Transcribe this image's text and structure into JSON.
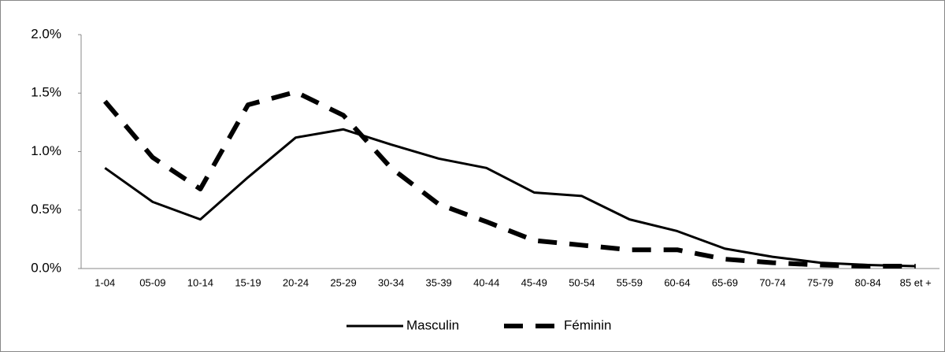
{
  "chart_data": {
    "type": "line",
    "categories": [
      "1-04",
      "05-09",
      "10-14",
      "15-19",
      "20-24",
      "25-29",
      "30-34",
      "35-39",
      "40-44",
      "45-49",
      "50-54",
      "55-59",
      "60-64",
      "65-69",
      "70-74",
      "75-79",
      "80-84",
      "85 et +"
    ],
    "series": [
      {
        "name": "Masculin",
        "color": "#000000",
        "dash": false,
        "values": [
          0.86,
          0.57,
          0.42,
          0.78,
          1.12,
          1.19,
          1.06,
          0.94,
          0.86,
          0.65,
          0.62,
          0.42,
          0.32,
          0.17,
          0.1,
          0.05,
          0.03,
          0.02
        ]
      },
      {
        "name": "Féminin",
        "color": "#000000",
        "dash": true,
        "values": [
          1.43,
          0.95,
          0.68,
          1.4,
          1.51,
          1.31,
          0.86,
          0.55,
          0.4,
          0.24,
          0.2,
          0.16,
          0.16,
          0.08,
          0.05,
          0.03,
          0.02,
          0.02
        ]
      }
    ],
    "ylim": [
      0,
      2
    ],
    "yticks": [
      {
        "value": 0,
        "label": "0.0%"
      },
      {
        "value": 0.5,
        "label": "0.5%"
      },
      {
        "value": 1,
        "label": "1.0%"
      },
      {
        "value": 1.5,
        "label": "1.5%"
      },
      {
        "value": 2,
        "label": "2.0%"
      }
    ],
    "grid": false,
    "legend": "bottom"
  }
}
